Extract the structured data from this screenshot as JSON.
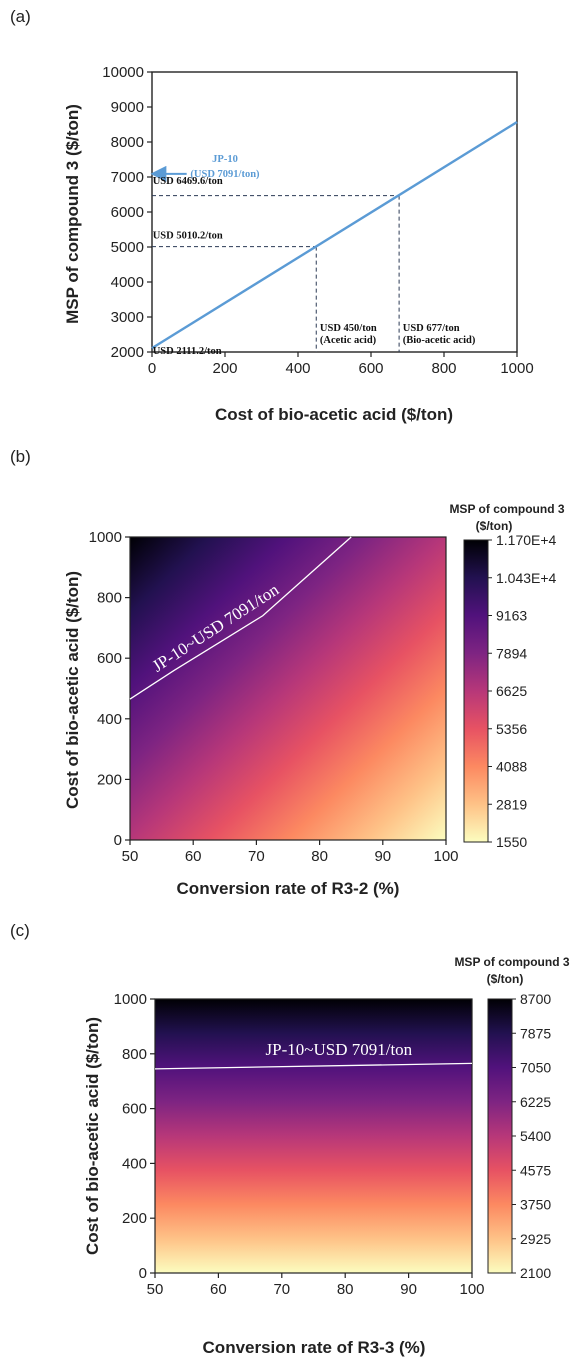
{
  "colors": {
    "line": "#5b9bd5",
    "axis": "#222222",
    "contour": "#ffffff",
    "magma_stops": [
      "#fcfdbf",
      "#fec287",
      "#fc8961",
      "#e75263",
      "#b73779",
      "#7e2482",
      "#51127c",
      "#221150",
      "#000004"
    ]
  },
  "chart_data": [
    {
      "panel_label": "(a)",
      "type": "line",
      "xlabel": "Cost of bio-acetic acid ($/ton)",
      "ylabel": "MSP of compound 3 ($/ton)",
      "xlim": [
        0,
        1000
      ],
      "ylim": [
        2000,
        10000
      ],
      "x_ticks": [
        0,
        200,
        400,
        600,
        800,
        1000
      ],
      "y_ticks": [
        2000,
        3000,
        4000,
        5000,
        6000,
        7000,
        8000,
        9000,
        10000
      ],
      "grid": false,
      "series": [
        {
          "x": [
            0,
            1000
          ],
          "y": [
            2111.2,
            8570
          ]
        }
      ],
      "reference_lines": [
        {
          "x": 450,
          "y": 5010.2
        },
        {
          "x": 677,
          "y": 6469.6
        }
      ],
      "arrow": {
        "y": 7091,
        "label_1": "JP-10",
        "label_2": "(USD 7091/ton)"
      },
      "annotations": [
        {
          "text": "USD 6469.6/ton",
          "x": 2,
          "y": 6800
        },
        {
          "text": "USD 5010.2/ton",
          "x": 2,
          "y": 5250
        },
        {
          "text": "USD 2111.2/ton",
          "x": 2,
          "y": 1950
        }
      ],
      "x_annotations": [
        {
          "line1": "USD 450/ton",
          "line2": "(Acetic acid)",
          "x": 460
        },
        {
          "line1": "USD 677/ton",
          "line2": "(Bio-acetic acid)",
          "x": 687
        }
      ]
    },
    {
      "panel_label": "(b)",
      "type": "heatmap",
      "xlabel": "Conversion rate of R3-2 (%)",
      "ylabel": "Cost of bio-acetic acid ($/ton)",
      "colorbar_title_1": "MSP of compound 3",
      "colorbar_title_2": "($/ton)",
      "xlim": [
        50,
        100
      ],
      "ylim": [
        0,
        1000
      ],
      "x_ticks": [
        50,
        60,
        70,
        80,
        90,
        100
      ],
      "y_ticks": [
        0,
        200,
        400,
        600,
        800,
        1000
      ],
      "colorbar_ticks": [
        "1550",
        "2819",
        "4088",
        "5356",
        "6625",
        "7894",
        "9163",
        "1.043E+4",
        "1.170E+4"
      ],
      "zlim": [
        1550,
        11700
      ],
      "contour": {
        "label": "JP-10~USD 7091/ton",
        "points": [
          [
            50,
            465
          ],
          [
            57,
            560
          ],
          [
            64,
            650
          ],
          [
            71,
            740
          ],
          [
            78,
            870
          ],
          [
            85,
            1000
          ]
        ]
      }
    },
    {
      "panel_label": "(c)",
      "type": "heatmap",
      "xlabel": "Conversion rate of R3-3 (%)",
      "ylabel": "Cost of bio-acetic acid ($/ton)",
      "colorbar_title_1": "MSP of compound 3",
      "colorbar_title_2": "($/ton)",
      "xlim": [
        50,
        100
      ],
      "ylim": [
        0,
        1000
      ],
      "x_ticks": [
        50,
        60,
        70,
        80,
        90,
        100
      ],
      "y_ticks": [
        0,
        200,
        400,
        600,
        800,
        1000
      ],
      "colorbar_ticks": [
        "2100",
        "2925",
        "3750",
        "4575",
        "5400",
        "6225",
        "7050",
        "7875",
        "8700"
      ],
      "zlim": [
        2100,
        8700
      ],
      "contour": {
        "label": "JP-10~USD 7091/ton",
        "points": [
          [
            50,
            745
          ],
          [
            100,
            765
          ]
        ]
      }
    }
  ]
}
